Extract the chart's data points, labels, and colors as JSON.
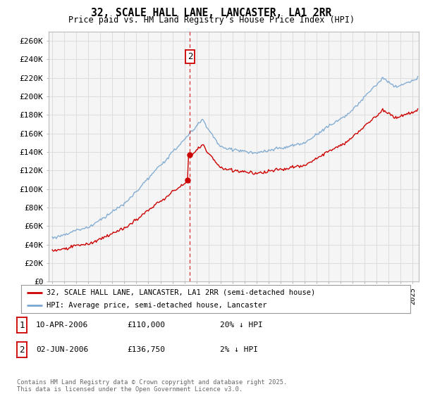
{
  "title": "32, SCALE HALL LANE, LANCASTER, LA1 2RR",
  "subtitle": "Price paid vs. HM Land Registry’s House Price Index (HPI)",
  "ylabel_ticks": [
    "£0",
    "£20K",
    "£40K",
    "£60K",
    "£80K",
    "£100K",
    "£120K",
    "£140K",
    "£160K",
    "£180K",
    "£200K",
    "£220K",
    "£240K",
    "£260K"
  ],
  "ylim": [
    0,
    270000
  ],
  "ytick_vals": [
    0,
    20000,
    40000,
    60000,
    80000,
    100000,
    120000,
    140000,
    160000,
    180000,
    200000,
    220000,
    240000,
    260000
  ],
  "xlim_start": 1994.7,
  "xlim_end": 2025.5,
  "legend_line1": "32, SCALE HALL LANE, LANCASTER, LA1 2RR (semi-detached house)",
  "legend_line2": "HPI: Average price, semi-detached house, Lancaster",
  "sale1_date": 2006.27,
  "sale1_price": 110000,
  "sale2_date": 2006.46,
  "sale2_price": 136750,
  "red_line_color": "#cc0000",
  "blue_line_color": "#7aa7d0",
  "grid_color": "#dddddd",
  "bg_color": "#ffffff",
  "plot_bg_color": "#f5f5f5",
  "footnote": "Contains HM Land Registry data © Crown copyright and database right 2025.\nThis data is licensed under the Open Government Licence v3.0.",
  "table_rows": [
    {
      "num": "1",
      "date": "10-APR-2006",
      "price": "£110,000",
      "hpi": "20% ↓ HPI"
    },
    {
      "num": "2",
      "date": "02-JUN-2006",
      "price": "£136,750",
      "hpi": "2% ↓ HPI"
    }
  ]
}
